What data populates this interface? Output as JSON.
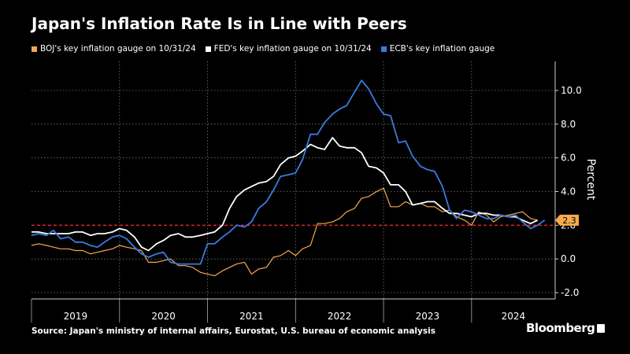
{
  "chart_data": {
    "type": "line",
    "title": "Japan's Inflation Rate Is in Line with Peers",
    "ylabel": "Percent",
    "xlabel": "",
    "ylim": [
      -2,
      11
    ],
    "yticks": [
      "10.0",
      "8.0",
      "6.0",
      "4.0",
      "2.0",
      "0.0",
      "-2.0"
    ],
    "ytick_values": [
      10,
      8,
      6,
      4,
      2,
      0,
      -2
    ],
    "x_categories": [
      "2019",
      "2020",
      "2021",
      "2022",
      "2023",
      "2024"
    ],
    "x_start": 2019.0,
    "x_end": 2024.95,
    "reference_line": {
      "value": 2.0,
      "color": "#e0242b",
      "style": "dashed"
    },
    "latest_label": {
      "text": "2.3",
      "value": 2.3,
      "color": "#f5a94e"
    },
    "series": [
      {
        "name": "BOJ's key inflation gauge on 10/31/24",
        "color": "#f5a94e",
        "points": [
          [
            2019.0,
            0.8
          ],
          [
            2019.08,
            0.9
          ],
          [
            2019.17,
            0.8
          ],
          [
            2019.25,
            0.7
          ],
          [
            2019.33,
            0.6
          ],
          [
            2019.42,
            0.6
          ],
          [
            2019.5,
            0.5
          ],
          [
            2019.58,
            0.5
          ],
          [
            2019.67,
            0.3
          ],
          [
            2019.75,
            0.4
          ],
          [
            2019.83,
            0.5
          ],
          [
            2019.92,
            0.6
          ],
          [
            2020.0,
            0.8
          ],
          [
            2020.08,
            0.7
          ],
          [
            2020.17,
            0.6
          ],
          [
            2020.25,
            0.5
          ],
          [
            2020.33,
            -0.2
          ],
          [
            2020.42,
            -0.2
          ],
          [
            2020.5,
            -0.1
          ],
          [
            2020.58,
            0.0
          ],
          [
            2020.67,
            -0.4
          ],
          [
            2020.75,
            -0.4
          ],
          [
            2020.83,
            -0.5
          ],
          [
            2020.92,
            -0.8
          ],
          [
            2021.0,
            -0.9
          ],
          [
            2021.08,
            -1.0
          ],
          [
            2021.17,
            -0.7
          ],
          [
            2021.25,
            -0.5
          ],
          [
            2021.33,
            -0.3
          ],
          [
            2021.42,
            -0.2
          ],
          [
            2021.5,
            -0.9
          ],
          [
            2021.58,
            -0.6
          ],
          [
            2021.67,
            -0.5
          ],
          [
            2021.75,
            0.1
          ],
          [
            2021.83,
            0.2
          ],
          [
            2021.92,
            0.5
          ],
          [
            2022.0,
            0.2
          ],
          [
            2022.08,
            0.6
          ],
          [
            2022.17,
            0.8
          ],
          [
            2022.25,
            2.1
          ],
          [
            2022.33,
            2.1
          ],
          [
            2022.42,
            2.2
          ],
          [
            2022.5,
            2.4
          ],
          [
            2022.58,
            2.8
          ],
          [
            2022.67,
            3.0
          ],
          [
            2022.75,
            3.6
          ],
          [
            2022.83,
            3.7
          ],
          [
            2022.92,
            4.0
          ],
          [
            2023.0,
            4.2
          ],
          [
            2023.08,
            3.1
          ],
          [
            2023.17,
            3.1
          ],
          [
            2023.25,
            3.4
          ],
          [
            2023.33,
            3.2
          ],
          [
            2023.42,
            3.3
          ],
          [
            2023.5,
            3.1
          ],
          [
            2023.58,
            3.1
          ],
          [
            2023.67,
            2.8
          ],
          [
            2023.75,
            2.9
          ],
          [
            2023.83,
            2.5
          ],
          [
            2023.92,
            2.3
          ],
          [
            2024.0,
            2.0
          ],
          [
            2024.08,
            2.8
          ],
          [
            2024.17,
            2.6
          ],
          [
            2024.25,
            2.2
          ],
          [
            2024.33,
            2.5
          ],
          [
            2024.42,
            2.6
          ],
          [
            2024.5,
            2.7
          ],
          [
            2024.58,
            2.8
          ],
          [
            2024.67,
            2.4
          ],
          [
            2024.75,
            2.3
          ]
        ]
      },
      {
        "name": "FED's key inflation gauge on 10/31/24",
        "color": "#ffffff",
        "points": [
          [
            2019.0,
            1.6
          ],
          [
            2019.08,
            1.6
          ],
          [
            2019.17,
            1.5
          ],
          [
            2019.25,
            1.5
          ],
          [
            2019.33,
            1.5
          ],
          [
            2019.42,
            1.5
          ],
          [
            2019.5,
            1.6
          ],
          [
            2019.58,
            1.6
          ],
          [
            2019.67,
            1.4
          ],
          [
            2019.75,
            1.5
          ],
          [
            2019.83,
            1.5
          ],
          [
            2019.92,
            1.6
          ],
          [
            2020.0,
            1.8
          ],
          [
            2020.08,
            1.7
          ],
          [
            2020.17,
            1.3
          ],
          [
            2020.25,
            0.7
          ],
          [
            2020.33,
            0.5
          ],
          [
            2020.42,
            0.9
          ],
          [
            2020.5,
            1.1
          ],
          [
            2020.58,
            1.4
          ],
          [
            2020.67,
            1.5
          ],
          [
            2020.75,
            1.3
          ],
          [
            2020.83,
            1.3
          ],
          [
            2020.92,
            1.4
          ],
          [
            2021.0,
            1.5
          ],
          [
            2021.08,
            1.6
          ],
          [
            2021.17,
            2.0
          ],
          [
            2021.25,
            3.0
          ],
          [
            2021.33,
            3.7
          ],
          [
            2021.42,
            4.1
          ],
          [
            2021.5,
            4.3
          ],
          [
            2021.58,
            4.5
          ],
          [
            2021.67,
            4.6
          ],
          [
            2021.75,
            4.9
          ],
          [
            2021.83,
            5.6
          ],
          [
            2021.92,
            6.0
          ],
          [
            2022.0,
            6.1
          ],
          [
            2022.08,
            6.4
          ],
          [
            2022.17,
            6.8
          ],
          [
            2022.25,
            6.6
          ],
          [
            2022.33,
            6.5
          ],
          [
            2022.42,
            7.2
          ],
          [
            2022.5,
            6.7
          ],
          [
            2022.58,
            6.6
          ],
          [
            2022.67,
            6.6
          ],
          [
            2022.75,
            6.3
          ],
          [
            2022.83,
            5.5
          ],
          [
            2022.92,
            5.4
          ],
          [
            2023.0,
            5.1
          ],
          [
            2023.08,
            4.4
          ],
          [
            2023.17,
            4.4
          ],
          [
            2023.25,
            4.0
          ],
          [
            2023.33,
            3.2
          ],
          [
            2023.42,
            3.3
          ],
          [
            2023.5,
            3.4
          ],
          [
            2023.58,
            3.4
          ],
          [
            2023.67,
            3.0
          ],
          [
            2023.75,
            2.7
          ],
          [
            2023.83,
            2.7
          ],
          [
            2023.92,
            2.6
          ],
          [
            2024.0,
            2.5
          ],
          [
            2024.08,
            2.7
          ],
          [
            2024.17,
            2.7
          ],
          [
            2024.25,
            2.6
          ],
          [
            2024.33,
            2.6
          ],
          [
            2024.42,
            2.5
          ],
          [
            2024.5,
            2.5
          ],
          [
            2024.58,
            2.3
          ],
          [
            2024.67,
            2.1
          ],
          [
            2024.75,
            2.3
          ]
        ]
      },
      {
        "name": "ECB's key inflation gauge",
        "color": "#3b7bdc",
        "points": [
          [
            2019.0,
            1.4
          ],
          [
            2019.08,
            1.5
          ],
          [
            2019.17,
            1.4
          ],
          [
            2019.25,
            1.7
          ],
          [
            2019.33,
            1.2
          ],
          [
            2019.42,
            1.3
          ],
          [
            2019.5,
            1.0
          ],
          [
            2019.58,
            1.0
          ],
          [
            2019.67,
            0.8
          ],
          [
            2019.75,
            0.7
          ],
          [
            2019.83,
            1.0
          ],
          [
            2019.92,
            1.3
          ],
          [
            2020.0,
            1.4
          ],
          [
            2020.08,
            1.2
          ],
          [
            2020.17,
            0.7
          ],
          [
            2020.25,
            0.3
          ],
          [
            2020.33,
            0.1
          ],
          [
            2020.42,
            0.3
          ],
          [
            2020.5,
            0.4
          ],
          [
            2020.58,
            -0.2
          ],
          [
            2020.67,
            -0.3
          ],
          [
            2020.75,
            -0.3
          ],
          [
            2020.83,
            -0.3
          ],
          [
            2020.92,
            -0.3
          ],
          [
            2021.0,
            0.9
          ],
          [
            2021.08,
            0.9
          ],
          [
            2021.17,
            1.3
          ],
          [
            2021.25,
            1.6
          ],
          [
            2021.33,
            2.0
          ],
          [
            2021.42,
            1.9
          ],
          [
            2021.5,
            2.2
          ],
          [
            2021.58,
            3.0
          ],
          [
            2021.67,
            3.4
          ],
          [
            2021.75,
            4.1
          ],
          [
            2021.83,
            4.9
          ],
          [
            2021.92,
            5.0
          ],
          [
            2022.0,
            5.1
          ],
          [
            2022.08,
            5.9
          ],
          [
            2022.17,
            7.4
          ],
          [
            2022.25,
            7.4
          ],
          [
            2022.33,
            8.1
          ],
          [
            2022.42,
            8.6
          ],
          [
            2022.5,
            8.9
          ],
          [
            2022.58,
            9.1
          ],
          [
            2022.67,
            9.9
          ],
          [
            2022.75,
            10.6
          ],
          [
            2022.83,
            10.1
          ],
          [
            2022.92,
            9.2
          ],
          [
            2023.0,
            8.6
          ],
          [
            2023.08,
            8.5
          ],
          [
            2023.17,
            6.9
          ],
          [
            2023.25,
            7.0
          ],
          [
            2023.33,
            6.1
          ],
          [
            2023.42,
            5.5
          ],
          [
            2023.5,
            5.3
          ],
          [
            2023.58,
            5.2
          ],
          [
            2023.67,
            4.3
          ],
          [
            2023.75,
            2.9
          ],
          [
            2023.83,
            2.4
          ],
          [
            2023.92,
            2.9
          ],
          [
            2024.0,
            2.8
          ],
          [
            2024.08,
            2.6
          ],
          [
            2024.17,
            2.4
          ],
          [
            2024.25,
            2.4
          ],
          [
            2024.33,
            2.6
          ],
          [
            2024.42,
            2.5
          ],
          [
            2024.5,
            2.6
          ],
          [
            2024.58,
            2.2
          ],
          [
            2024.67,
            1.8
          ],
          [
            2024.75,
            2.0
          ],
          [
            2024.83,
            2.3
          ]
        ]
      }
    ]
  },
  "footer": {
    "source": "Source: Japan's ministry of internal affairs, Eurostat, U.S. bureau of economic analysis",
    "brand": "Bloomberg"
  },
  "colors": {
    "background": "#000000",
    "grid": "#777777",
    "text": "#ffffff"
  }
}
